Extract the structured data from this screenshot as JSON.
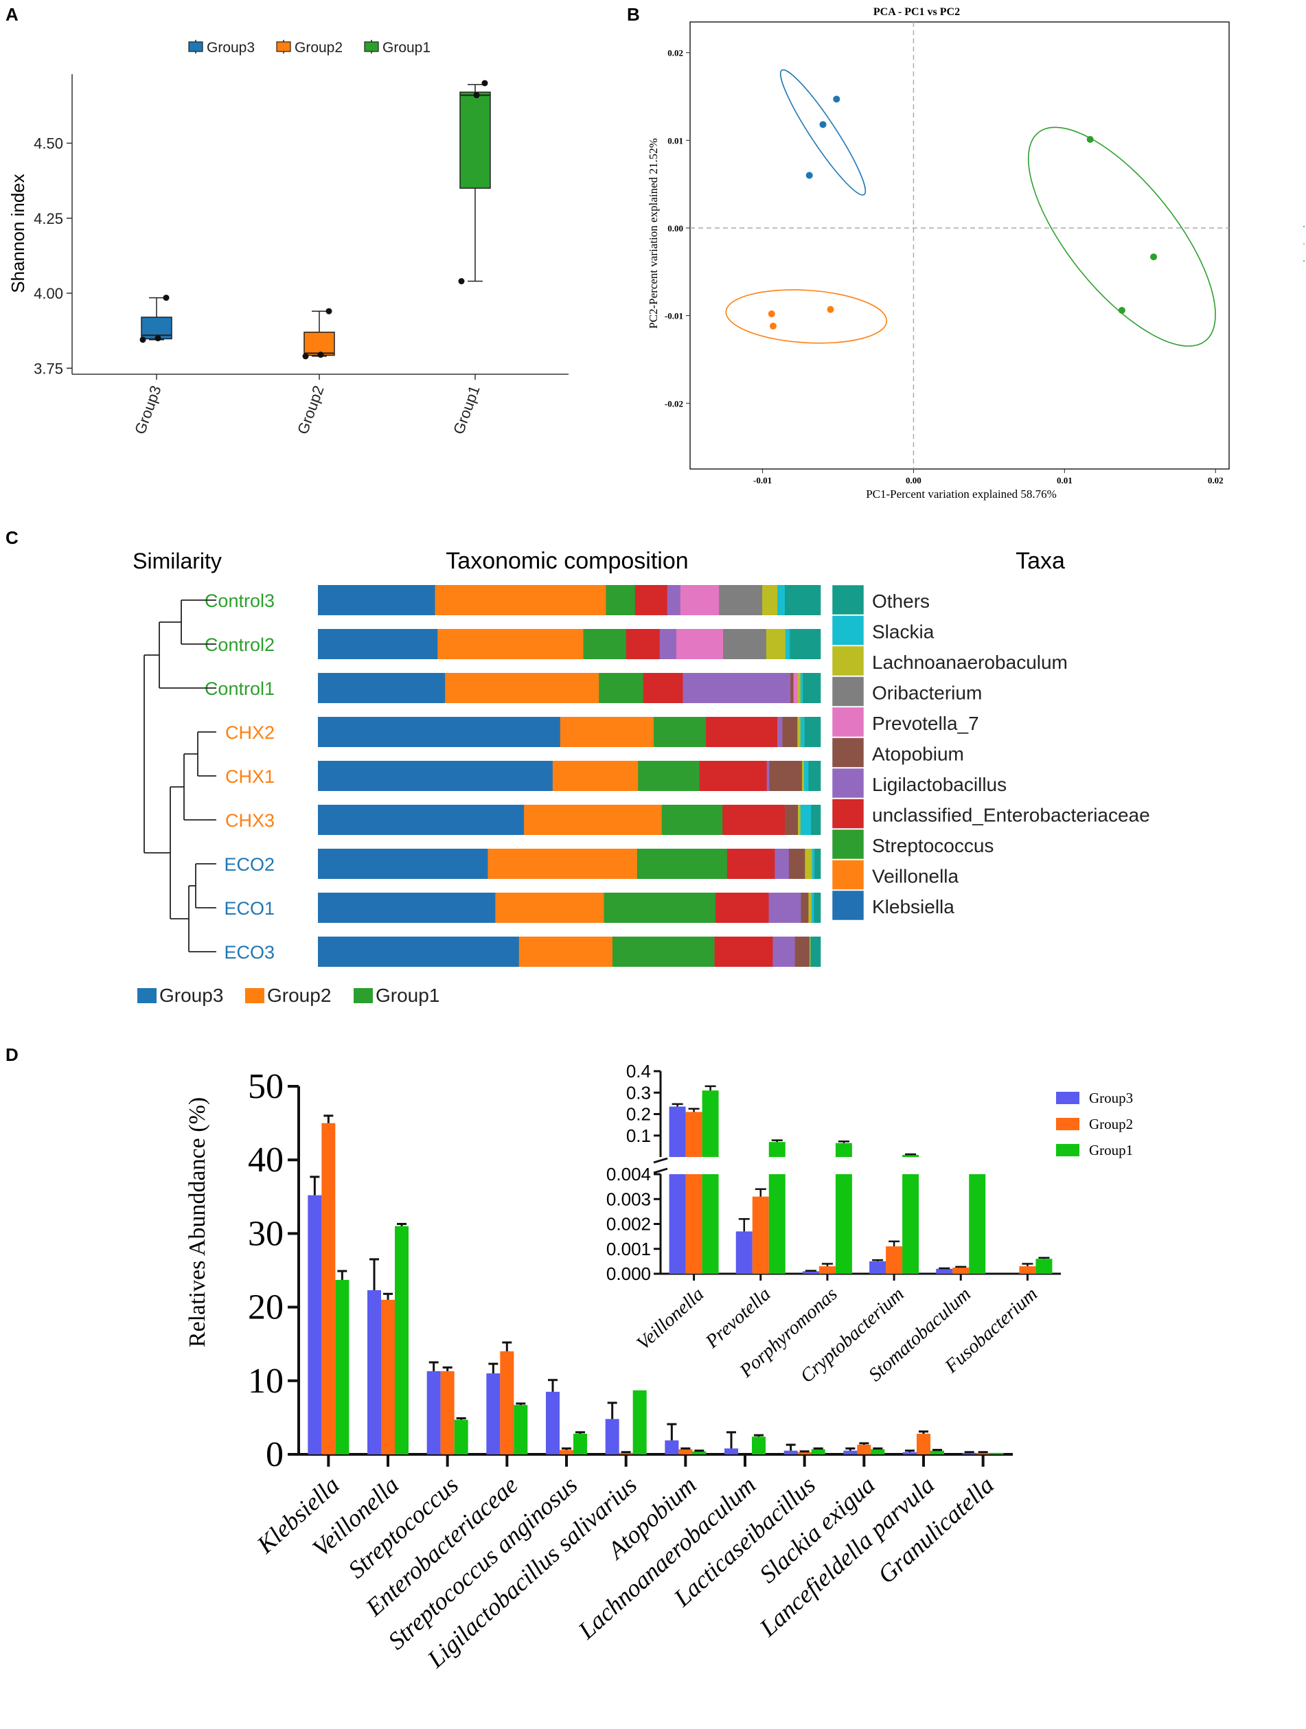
{
  "colors": {
    "group3": "#1f77b4",
    "group2": "#ff7f0e",
    "group1": "#2ca02c",
    "d_group3": "#5b5bf0",
    "d_group2": "#ff6a13",
    "d_group1": "#11c411"
  },
  "panel_a": {
    "letter": "A",
    "chart_data": {
      "type": "boxplot",
      "title": "",
      "ylabel": "Shannon index",
      "xlabel": "",
      "ylim": [
        3.73,
        4.73
      ],
      "yticks": [
        "3.75",
        "4.00",
        "4.25",
        "4.50"
      ],
      "ytick_values": [
        3.75,
        4.0,
        4.25,
        4.5
      ],
      "legend": [
        "Group3",
        "Group2",
        "Group1"
      ],
      "categories": [
        "Group3",
        "Group2",
        "Group1"
      ],
      "boxes": [
        {
          "name": "Group3",
          "min": 3.845,
          "q1": 3.848,
          "median": 3.86,
          "q3": 3.92,
          "max": 3.985,
          "points": [
            3.985,
            3.85,
            3.845
          ]
        },
        {
          "name": "Group2",
          "min": 3.79,
          "q1": 3.793,
          "median": 3.8,
          "q3": 3.87,
          "max": 3.94,
          "points": [
            3.94,
            3.795,
            3.79
          ]
        },
        {
          "name": "Group1",
          "min": 4.04,
          "q1": 4.35,
          "median": 4.66,
          "q3": 4.67,
          "max": 4.695,
          "points": [
            4.7,
            4.66,
            4.04
          ]
        }
      ]
    }
  },
  "panel_b": {
    "letter": "B",
    "chart_data": {
      "type": "scatter",
      "title": "PCA - PC1 vs PC2",
      "xlabel": "PC1-Percent variation explained 58.76%",
      "ylabel": "PC2-Percent variation explained 21.52%",
      "xlim": [
        -0.0148,
        0.0209
      ],
      "ylim": [
        -0.0275,
        0.0235
      ],
      "xticks": [
        "-0.01",
        "0.00",
        "0.01",
        "0.02"
      ],
      "xtick_values": [
        -0.01,
        0.0,
        0.01,
        0.02
      ],
      "yticks": [
        "0.02",
        "0.01",
        "0.00",
        "-0.01",
        "-0.02"
      ],
      "ytick_values": [
        0.02,
        0.01,
        0.0,
        -0.01,
        -0.02
      ],
      "legend": [
        "Group3",
        "Group2",
        "Group1"
      ],
      "series": [
        {
          "name": "Group3",
          "points": [
            [
              -0.0069,
              0.006
            ],
            [
              -0.006,
              0.0118
            ],
            [
              -0.0051,
              0.0147
            ]
          ],
          "ellipse": {
            "cx": -0.006,
            "cy": 0.0109,
            "rx": 0.0152,
            "ry": 0.00105,
            "angle_deg": -69
          }
        },
        {
          "name": "Group2",
          "points": [
            [
              -0.0094,
              -0.0098
            ],
            [
              -0.0093,
              -0.0112
            ],
            [
              -0.0055,
              -0.0093
            ]
          ],
          "ellipse": {
            "cx": -0.0071,
            "cy": -0.0101,
            "rx": 0.0107,
            "ry": 0.0022,
            "angle_deg": -6
          }
        },
        {
          "name": "Group1",
          "points": [
            [
              0.0117,
              0.0101
            ],
            [
              0.0159,
              -0.0033
            ],
            [
              0.0138,
              -0.0094
            ]
          ],
          "ellipse": {
            "cx": 0.0138,
            "cy": -0.001,
            "rx": 0.0262,
            "ry": 0.0045,
            "angle_deg": -65
          }
        }
      ]
    }
  },
  "panel_c": {
    "letter": "C",
    "similarity_title": "Similarity",
    "composition_title": "Taxonomic composition",
    "taxa_title": "Taxa",
    "bottom_legend": [
      "Group3",
      "Group2",
      "Group1"
    ],
    "chart_data": {
      "type": "stacked-bar",
      "samples": [
        "Control3",
        "Control2",
        "Control1",
        "CHX2",
        "CHX1",
        "CHX3",
        "ECO2",
        "ECO1",
        "ECO3"
      ],
      "sample_group": [
        "Group1",
        "Group1",
        "Group1",
        "Group2",
        "Group2",
        "Group2",
        "Group3",
        "Group3",
        "Group3"
      ],
      "taxa": [
        "Klebsiella",
        "Veillonella",
        "Streptococcus",
        "unclassified_Enterobacteriaceae",
        "Ligilactobacillus",
        "Atopobium",
        "Prevotella_7",
        "Oribacterium",
        "Lachnoanaerobaculum",
        "Slackia",
        "Others"
      ],
      "taxa_colors": [
        "#2272b3",
        "#ff8113",
        "#2e9e31",
        "#d52828",
        "#9369c0",
        "#8b5346",
        "#e377c2",
        "#7f7f7f",
        "#bcbd22",
        "#17becf",
        "#159c8a"
      ],
      "legend_order": [
        "Others",
        "Slackia",
        "Lachnoanaerobaculum",
        "Oribacterium",
        "Prevotella_7",
        "Atopobium",
        "Ligilactobacillus",
        "unclassified_Enterobacteriaceae",
        "Streptococcus",
        "Veillonella",
        "Klebsiella"
      ],
      "values": [
        [
          23.3,
          34.0,
          5.8,
          6.4,
          2.6,
          0.0,
          7.7,
          8.6,
          3.0,
          1.5,
          7.1
        ],
        [
          23.8,
          29.0,
          8.5,
          6.7,
          3.3,
          0.0,
          9.3,
          8.6,
          3.8,
          0.9,
          6.1
        ],
        [
          25.3,
          30.6,
          8.8,
          7.9,
          21.4,
          0.6,
          0.8,
          0.0,
          0.6,
          0.5,
          3.5
        ],
        [
          48.2,
          18.6,
          10.4,
          14.2,
          1.0,
          3.0,
          0.0,
          0.0,
          0.6,
          0.8,
          3.2
        ],
        [
          46.7,
          17.0,
          12.2,
          13.4,
          0.5,
          6.5,
          0.0,
          0.0,
          0.4,
          0.9,
          2.4
        ],
        [
          41.0,
          27.4,
          12.1,
          12.4,
          0.0,
          2.6,
          0.0,
          0.0,
          0.5,
          2.1,
          1.9
        ],
        [
          33.8,
          29.7,
          17.9,
          9.5,
          2.8,
          3.2,
          0.0,
          0.0,
          1.4,
          0.5,
          1.2
        ],
        [
          35.3,
          21.6,
          22.2,
          10.6,
          6.4,
          1.5,
          0.0,
          0.0,
          0.6,
          0.5,
          1.3
        ],
        [
          40.0,
          18.6,
          20.3,
          11.6,
          4.4,
          2.9,
          0.0,
          0.0,
          0.2,
          0.0,
          2.0
        ]
      ]
    }
  },
  "panel_d": {
    "letter": "D",
    "chart_data": {
      "type": "bar",
      "ylabel": "Relatives Abunddance (%)",
      "ylim": [
        0,
        50
      ],
      "yticks": [
        "0",
        "10",
        "20",
        "30",
        "40",
        "50"
      ],
      "ytick_values": [
        0,
        10,
        20,
        30,
        40,
        50
      ],
      "categories": [
        "Klebsiella",
        "Veillonella",
        "Streptococcus",
        "Enterobacteriaceae",
        "Streptococcus anginosus",
        "Ligilactobacillus salivarius",
        "Atopobium",
        "Lachnoanaerobaculum",
        "Lacticaseibacillus",
        "Slackia exigua",
        "Lancefieldella parvula",
        "Granulicatella"
      ],
      "series": [
        {
          "name": "Group3",
          "values": [
            35.2,
            22.3,
            11.3,
            11.0,
            8.5,
            4.8,
            1.9,
            0.8,
            0.5,
            0.5,
            0.3,
            0.2
          ],
          "errors": [
            2.5,
            4.2,
            1.2,
            1.3,
            1.6,
            2.2,
            2.2,
            2.2,
            0.8,
            0.3,
            0.2,
            0.1
          ]
        },
        {
          "name": "Group2",
          "values": [
            45.0,
            21.0,
            11.3,
            14.0,
            0.6,
            0.2,
            0.7,
            0.0,
            0.3,
            1.3,
            2.8,
            0.2
          ],
          "errors": [
            1.0,
            0.8,
            0.5,
            1.2,
            0.2,
            0.1,
            0.1,
            0.0,
            0.1,
            0.2,
            0.3,
            0.1
          ]
        },
        {
          "name": "Group1",
          "values": [
            23.7,
            31.0,
            4.7,
            6.7,
            2.8,
            8.7,
            0.4,
            2.4,
            0.7,
            0.7,
            0.5,
            0.2
          ],
          "errors": [
            1.2,
            0.3,
            0.2,
            0.2,
            0.2,
            0.0,
            0.1,
            0.2,
            0.1,
            0.1,
            0.1,
            0.0
          ]
        }
      ],
      "inset": {
        "categories": [
          "Veillonella",
          "Prevotella",
          "Porphyromonas",
          "Cryptobacterium",
          "Stomatobaculum",
          "Fusobacterium"
        ],
        "upper_ticks": [
          "0.1",
          "0.2",
          "0.3",
          "0.4"
        ],
        "upper_tick_values": [
          0.1,
          0.2,
          0.3,
          0.4
        ],
        "lower_ticks": [
          "0.000",
          "0.001",
          "0.002",
          "0.003",
          "0.004"
        ],
        "lower_tick_values": [
          0.0,
          0.001,
          0.002,
          0.003,
          0.004
        ],
        "series": [
          {
            "name": "Group3",
            "values": [
              0.235,
              0.0017,
              0.0001,
              0.0005,
              0.0002,
              0.0
            ],
            "errors": [
              0.012,
              0.0005,
              2e-05,
              5e-05,
              2e-05,
              0.0
            ]
          },
          {
            "name": "Group2",
            "values": [
              0.21,
              0.0031,
              0.0003,
              0.0011,
              0.00025,
              0.0003
            ],
            "errors": [
              0.015,
              0.0003,
              0.0001,
              0.0002,
              3e-05,
              0.0001
            ]
          },
          {
            "name": "Group1",
            "values": [
              0.31,
              0.07,
              0.065,
              0.01,
              0.004,
              0.0006
            ],
            "errors": [
              0.02,
              0.008,
              0.008,
              0.003,
              0.0,
              4e-05
            ]
          }
        ],
        "legend": [
          "Group3",
          "Group2",
          "Group1"
        ]
      }
    }
  }
}
